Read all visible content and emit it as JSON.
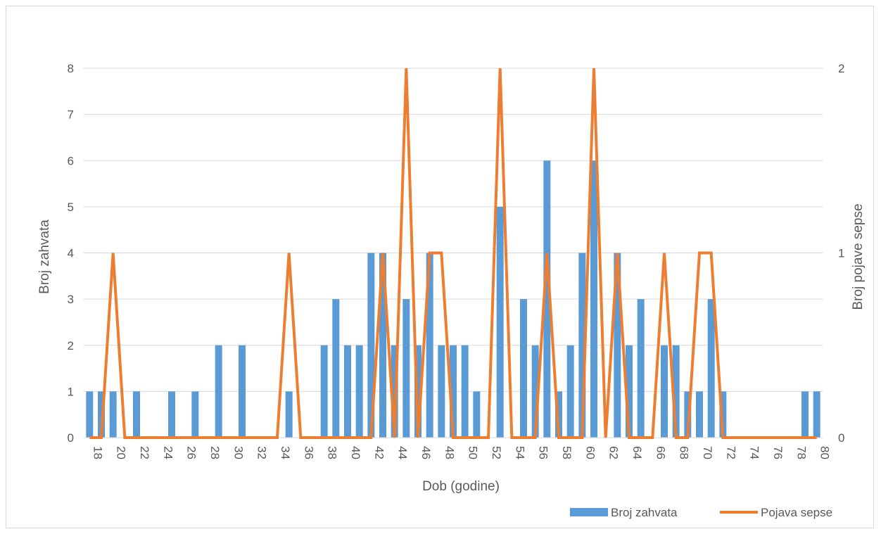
{
  "chart_data": {
    "type": "bar",
    "title": "",
    "xlabel": "Dob (godine)",
    "ylabel": "Broj zahvata",
    "y2label": "Broj pojave sepse",
    "ylim": [
      0,
      8
    ],
    "y2lim": [
      0,
      2
    ],
    "yticks": [
      0,
      1,
      2,
      3,
      4,
      5,
      6,
      7,
      8
    ],
    "y2ticks": [
      0,
      1,
      2
    ],
    "grid": true,
    "legend_position": "bottom-right",
    "x": [
      18,
      19,
      20,
      21,
      22,
      23,
      24,
      25,
      26,
      27,
      28,
      29,
      30,
      31,
      32,
      33,
      34,
      35,
      36,
      37,
      38,
      39,
      40,
      41,
      42,
      43,
      44,
      45,
      46,
      47,
      48,
      49,
      50,
      51,
      52,
      53,
      54,
      55,
      56,
      57,
      58,
      59,
      60,
      61,
      62,
      63,
      64,
      65,
      66,
      67,
      68,
      69,
      70,
      71,
      72,
      73,
      74,
      75,
      76,
      77,
      78,
      79,
      80
    ],
    "x_tick_labels": [
      18,
      20,
      22,
      24,
      26,
      28,
      30,
      32,
      34,
      36,
      38,
      40,
      42,
      44,
      46,
      48,
      50,
      52,
      54,
      56,
      58,
      60,
      62,
      64,
      66,
      68,
      70,
      72,
      74,
      76,
      78,
      80
    ],
    "series": [
      {
        "name": "Broj zahvata",
        "kind": "bar",
        "axis": "left",
        "color": "#5b9bd5",
        "values": [
          1,
          1,
          1,
          0,
          1,
          0,
          0,
          1,
          0,
          1,
          0,
          2,
          0,
          2,
          0,
          0,
          0,
          1,
          0,
          0,
          2,
          3,
          2,
          2,
          4,
          4,
          2,
          3,
          2,
          4,
          2,
          2,
          2,
          1,
          0,
          5,
          0,
          3,
          2,
          6,
          1,
          2,
          4,
          6,
          0,
          4,
          2,
          3,
          0,
          2,
          2,
          1,
          1,
          3,
          1,
          0,
          0,
          0,
          0,
          0,
          0,
          1,
          1
        ]
      },
      {
        "name": "Pojava sepse",
        "kind": "line",
        "axis": "right",
        "color": "#ed7d31",
        "values": [
          0,
          0,
          1,
          0,
          0,
          0,
          0,
          0,
          0,
          0,
          0,
          0,
          0,
          0,
          0,
          0,
          0,
          1,
          0,
          0,
          0,
          0,
          0,
          0,
          0,
          1,
          0,
          2,
          0,
          1,
          1,
          0,
          0,
          0,
          0,
          2,
          0,
          0,
          0,
          1,
          0,
          0,
          0,
          2,
          0,
          1,
          0,
          0,
          0,
          1,
          0,
          0,
          1,
          1,
          0,
          0,
          0,
          0,
          0,
          0,
          0,
          0,
          0
        ]
      }
    ]
  }
}
